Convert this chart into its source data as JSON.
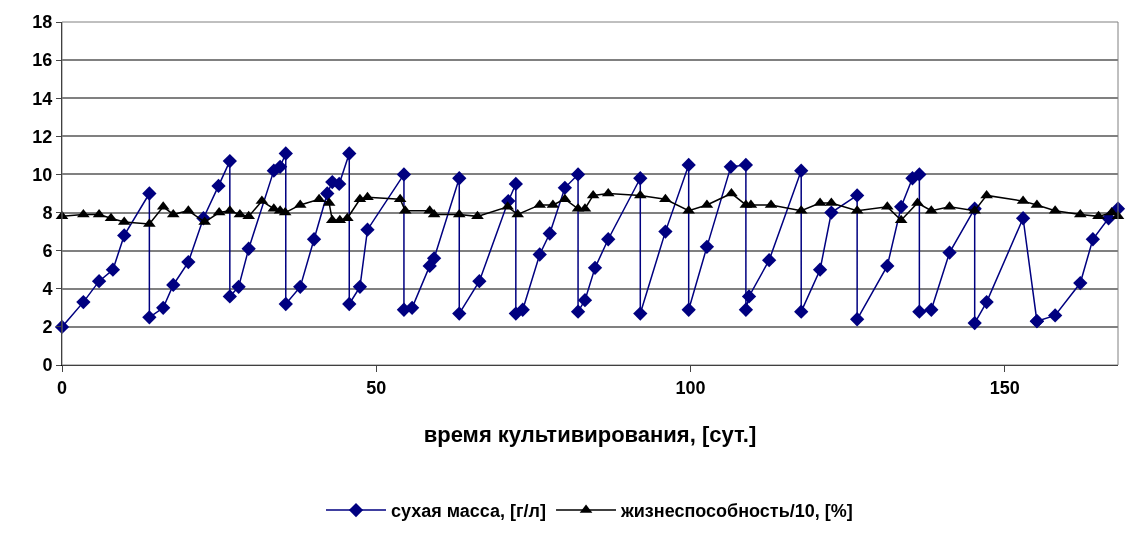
{
  "chart_data": {
    "type": "line",
    "xlabel": "время культивирования, [сут.]",
    "xlim": [
      0,
      168
    ],
    "xticks": [
      0,
      50,
      100,
      150
    ],
    "ylim": [
      0,
      18
    ],
    "yticks": [
      0,
      2,
      4,
      6,
      8,
      10,
      12,
      14,
      16,
      18
    ],
    "grid": "y",
    "legend": "bottom",
    "series": [
      {
        "name": "сухая масса, [г/л]",
        "color": "#000080",
        "marker": "diamond",
        "x": [
          0,
          3.4,
          5.9,
          8.1,
          9.9,
          13.9,
          13.9,
          16.1,
          17.7,
          20.1,
          22.5,
          24.9,
          26.7,
          26.7,
          28.1,
          29.7,
          33.7,
          34.7,
          35.6,
          35.6,
          37.9,
          40.1,
          42.2,
          43,
          44.1,
          45.7,
          45.7,
          47.4,
          48.6,
          54.4,
          54.4,
          55.7,
          58.5,
          59.2,
          63.2,
          63.2,
          66.4,
          71,
          72.2,
          72.2,
          73.3,
          76,
          77.6,
          80,
          82.1,
          82.1,
          83.2,
          84.8,
          86.9,
          92,
          92,
          96,
          99.7,
          99.7,
          102.6,
          106.4,
          108.8,
          108.8,
          109.3,
          112.5,
          117.6,
          117.6,
          120.6,
          122.4,
          126.5,
          126.5,
          131.3,
          133.5,
          135.3,
          136.4,
          136.4,
          138.3,
          141.2,
          145.2,
          145.2,
          147.1,
          152.9,
          155.1,
          155.1,
          158,
          162,
          164,
          166.5,
          168
        ],
        "values": [
          2.0,
          3.3,
          4.4,
          5.0,
          6.8,
          9.0,
          2.5,
          3.0,
          4.2,
          5.4,
          7.7,
          9.4,
          10.7,
          3.6,
          4.1,
          6.1,
          10.2,
          10.4,
          11.1,
          3.2,
          4.1,
          6.6,
          9.0,
          9.6,
          9.5,
          11.1,
          3.2,
          4.1,
          7.1,
          10.0,
          2.9,
          3.0,
          5.2,
          5.6,
          9.8,
          2.7,
          4.4,
          8.6,
          9.5,
          2.7,
          2.9,
          5.8,
          6.9,
          9.3,
          10.0,
          2.8,
          3.4,
          5.1,
          6.6,
          9.8,
          2.7,
          7.0,
          10.5,
          2.9,
          6.2,
          10.4,
          10.5,
          2.9,
          3.6,
          5.5,
          10.2,
          2.8,
          5.0,
          8.0,
          8.9,
          2.4,
          5.2,
          8.3,
          9.8,
          10.0,
          2.8,
          2.9,
          5.9,
          8.2,
          2.2,
          3.3,
          7.7,
          2.3,
          2.3,
          2.6,
          4.3,
          6.6,
          7.7,
          8.2
        ]
      },
      {
        "name": "жизнеспособность/10, [%]",
        "color": "#000000",
        "marker": "triangle",
        "x": [
          0,
          3.4,
          5.9,
          7.8,
          9.9,
          13.9,
          16.1,
          17.7,
          20.1,
          22.7,
          25,
          26.7,
          28.3,
          29.7,
          31.8,
          33.7,
          34.7,
          35.5,
          37.9,
          40.9,
          42.5,
          43,
          44.2,
          45.4,
          47.4,
          48.6,
          53.8,
          54.6,
          58.5,
          59.2,
          63.2,
          66.1,
          70.9,
          72.5,
          76,
          78.1,
          80,
          82.1,
          83.2,
          84.5,
          86.9,
          92,
          96,
          99.7,
          102.6,
          106.5,
          108.8,
          109.6,
          112.8,
          117.6,
          120.6,
          122.4,
          126.5,
          131.3,
          133.5,
          136.1,
          138.3,
          141.2,
          145.2,
          147.1,
          152.9,
          155.1,
          158,
          162,
          164.9,
          167,
          168
        ],
        "values": [
          7.8,
          7.9,
          7.9,
          7.7,
          7.5,
          7.4,
          8.3,
          7.9,
          8.1,
          7.5,
          8.0,
          8.1,
          7.9,
          7.8,
          8.6,
          8.2,
          8.1,
          8.0,
          8.4,
          8.7,
          8.5,
          7.6,
          7.6,
          7.7,
          8.7,
          8.8,
          8.7,
          8.1,
          8.1,
          7.9,
          7.9,
          7.8,
          8.3,
          7.9,
          8.4,
          8.4,
          8.7,
          8.2,
          8.2,
          8.9,
          9.0,
          8.9,
          8.7,
          8.1,
          8.4,
          9.0,
          8.4,
          8.4,
          8.4,
          8.1,
          8.5,
          8.5,
          8.1,
          8.3,
          7.6,
          8.5,
          8.1,
          8.3,
          8.1,
          8.9,
          8.6,
          8.4,
          8.1,
          7.9,
          7.8,
          8.0,
          7.8
        ]
      }
    ]
  }
}
